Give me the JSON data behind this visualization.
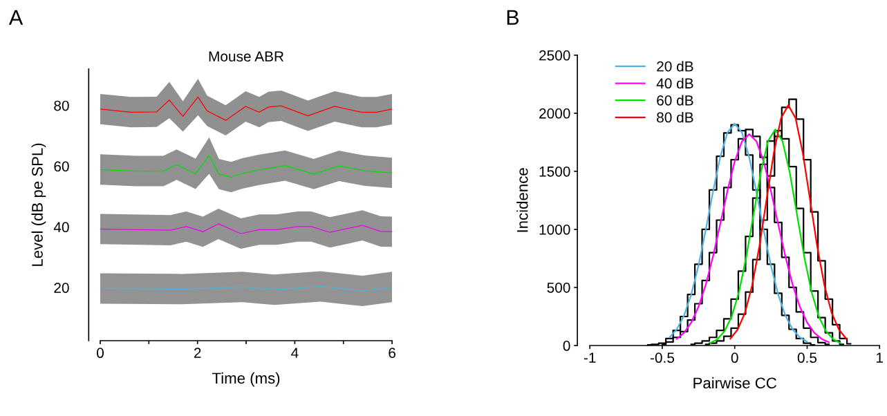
{
  "chart_data": [
    {
      "type": "line",
      "title": "Mouse ABR",
      "xlabel": "Time (ms)",
      "ylabel": "Level (dB pe SPL)",
      "annotations": [
        "A"
      ],
      "xlim": [
        0,
        6
      ],
      "xticks": [
        0,
        {
          "value": 1,
          "label": null
        },
        2,
        {
          "value": 3,
          "label": null
        },
        4,
        {
          "value": 5,
          "label": null
        },
        6
      ],
      "ylim": [
        2.5,
        92
      ],
      "yticks": [
        20,
        40,
        60,
        80
      ],
      "grid": false,
      "legend": false,
      "series": [
        {
          "color": "#ff0000",
          "x": [
            0,
            0.63,
            1.16,
            1.42,
            1.7,
            2.01,
            2.2,
            2.58,
            2.99,
            3.27,
            3.46,
            3.72,
            4.27,
            4.82,
            5.37,
            5.68,
            6.0
          ],
          "values": [
            78.8,
            77.8,
            77.9,
            81.8,
            76.4,
            82.8,
            78.2,
            75.1,
            79.7,
            77.8,
            79.5,
            79.9,
            76.6,
            79.7,
            77.8,
            77.8,
            78.8
          ],
          "lower": [
            73.8,
            72.8,
            72.9,
            75.8,
            71.4,
            76.8,
            73.2,
            70.1,
            74.7,
            72.8,
            74.5,
            74.9,
            71.6,
            74.7,
            72.8,
            72.8,
            73.8
          ],
          "upper": [
            83.8,
            82.8,
            82.9,
            87.8,
            81.4,
            88.8,
            83.2,
            80.1,
            84.7,
            82.8,
            84.5,
            84.9,
            81.6,
            84.7,
            82.8,
            82.8,
            83.8
          ]
        },
        {
          "color": "#00dd00",
          "x": [
            0,
            0.73,
            1.3,
            1.57,
            1.96,
            2.24,
            2.44,
            2.69,
            2.92,
            3.27,
            3.8,
            4.39,
            4.91,
            5.44,
            6.0
          ],
          "values": [
            58.9,
            58.4,
            58.4,
            60.5,
            57.5,
            63.5,
            57.4,
            56.4,
            57.6,
            58.8,
            60.2,
            57.4,
            60.1,
            58.5,
            57.8
          ],
          "lower": [
            53.9,
            53.4,
            53.4,
            55.5,
            52.5,
            57.5,
            52.4,
            51.4,
            52.6,
            53.8,
            55.2,
            52.4,
            55.1,
            53.5,
            52.8
          ],
          "upper": [
            63.9,
            63.4,
            63.4,
            65.5,
            62.5,
            69.5,
            62.4,
            61.4,
            62.6,
            63.8,
            65.2,
            62.4,
            65.1,
            63.5,
            62.8
          ]
        },
        {
          "color": "#ee00ee",
          "x": [
            0,
            1.44,
            1.77,
            2.11,
            2.43,
            2.89,
            3.27,
            3.63,
            4.06,
            4.34,
            4.72,
            5.39,
            5.77,
            6.0
          ],
          "values": [
            39.3,
            38.9,
            40.1,
            38.4,
            41.0,
            37.8,
            39.1,
            39.1,
            40.1,
            40.1,
            38.2,
            40.5,
            38.5,
            38.4
          ],
          "lower": [
            34.3,
            33.9,
            35.1,
            33.4,
            36.0,
            32.8,
            34.1,
            34.1,
            35.1,
            35.1,
            33.2,
            35.5,
            33.5,
            33.4
          ],
          "upper": [
            44.3,
            43.9,
            45.1,
            43.4,
            46.0,
            42.8,
            44.1,
            44.1,
            45.1,
            45.1,
            43.2,
            45.5,
            43.5,
            43.4
          ]
        },
        {
          "color": "#4fb3e0",
          "x": [
            0,
            1.68,
            2.92,
            3.58,
            4.53,
            5.39,
            6.0
          ],
          "values": [
            19.7,
            19.5,
            20.2,
            19.3,
            20.4,
            18.9,
            20.2
          ],
          "lower": [
            14.7,
            14.5,
            15.2,
            14.3,
            15.4,
            13.9,
            15.2
          ],
          "upper": [
            24.7,
            24.5,
            25.2,
            24.3,
            25.4,
            23.9,
            25.2
          ]
        }
      ]
    },
    {
      "type": "line",
      "xlabel": "Pairwise CC",
      "ylabel": "Incidence",
      "annotations": [
        "B"
      ],
      "xlim": [
        -1,
        1
      ],
      "xticks": [
        -1,
        -0.5,
        0,
        0.5,
        1
      ],
      "ylim": [
        0,
        2500
      ],
      "yticks": [
        0,
        500,
        1000,
        1500,
        2000,
        2500
      ],
      "grid": false,
      "legend": "top left",
      "series": [
        {
          "type": "step",
          "color": "#000000",
          "x": [
            -0.6,
            -0.55,
            -0.5,
            -0.45,
            -0.4,
            -0.35,
            -0.3,
            -0.25,
            -0.2,
            -0.15,
            -0.1,
            -0.05,
            0,
            0.05,
            0.1,
            0.15,
            0.2,
            0.25,
            0.3,
            0.35,
            0.4,
            0.45,
            0.5,
            0.55
          ],
          "values": [
            5,
            10,
            20,
            60,
            130,
            250,
            440,
            700,
            1000,
            1340,
            1630,
            1830,
            1900,
            1850,
            1640,
            1340,
            1000,
            700,
            450,
            260,
            140,
            60,
            20,
            5
          ]
        },
        {
          "type": "step",
          "color": "#000000",
          "x": [
            -0.5,
            -0.45,
            -0.4,
            -0.35,
            -0.3,
            -0.25,
            -0.2,
            -0.15,
            -0.1,
            -0.05,
            0,
            0.05,
            0.1,
            0.15,
            0.2,
            0.25,
            0.3,
            0.35,
            0.4,
            0.45,
            0.5,
            0.55,
            0.6,
            0.65
          ],
          "values": [
            10,
            30,
            70,
            120,
            220,
            360,
            560,
            800,
            1080,
            1360,
            1600,
            1780,
            1860,
            1800,
            1620,
            1360,
            1060,
            760,
            500,
            290,
            150,
            70,
            25,
            10
          ]
        },
        {
          "type": "step",
          "color": "#000000",
          "x": [
            -0.3,
            -0.25,
            -0.2,
            -0.15,
            -0.1,
            -0.05,
            0,
            0.05,
            0.1,
            0.15,
            0.2,
            0.25,
            0.3,
            0.35,
            0.4,
            0.45,
            0.5,
            0.55,
            0.6,
            0.65,
            0.7,
            0.75
          ],
          "values": [
            10,
            20,
            40,
            70,
            130,
            230,
            400,
            640,
            940,
            1270,
            1560,
            1760,
            1850,
            1780,
            1540,
            1180,
            800,
            470,
            240,
            110,
            40,
            10
          ]
        },
        {
          "type": "step",
          "color": "#000000",
          "x": [
            -0.2,
            -0.15,
            -0.1,
            -0.05,
            0,
            0.05,
            0.1,
            0.15,
            0.2,
            0.25,
            0.3,
            0.35,
            0.4,
            0.45,
            0.5,
            0.55,
            0.6,
            0.65,
            0.7,
            0.75,
            0.8
          ],
          "values": [
            10,
            20,
            40,
            80,
            150,
            270,
            460,
            740,
            1080,
            1460,
            1800,
            2050,
            2120,
            1950,
            1600,
            1150,
            730,
            400,
            180,
            60,
            15
          ]
        },
        {
          "type": "line",
          "name": "20 dB",
          "color": "#4fb3e0",
          "x": [
            -0.45,
            -0.4,
            -0.35,
            -0.3,
            -0.25,
            -0.2,
            -0.15,
            -0.1,
            -0.05,
            0,
            0.05,
            0.1,
            0.15,
            0.2,
            0.25,
            0.3,
            0.35,
            0.4,
            0.45,
            0.5
          ],
          "values": [
            70,
            140,
            258,
            440,
            688,
            994,
            1323,
            1622,
            1834,
            1910,
            1834,
            1622,
            1323,
            994,
            688,
            440,
            258,
            140,
            70,
            32
          ]
        },
        {
          "type": "line",
          "name": "40 dB",
          "color": "#ff00ff",
          "x": [
            -0.4,
            -0.35,
            -0.3,
            -0.25,
            -0.2,
            -0.15,
            -0.1,
            -0.05,
            0,
            0.05,
            0.1,
            0.15,
            0.2,
            0.25,
            0.3,
            0.35,
            0.4,
            0.45,
            0.5,
            0.55,
            0.6,
            0.65
          ],
          "values": [
            57,
            110,
            198,
            333,
            523,
            766,
            1046,
            1332,
            1585,
            1758,
            1820,
            1758,
            1585,
            1332,
            1046,
            766,
            523,
            333,
            198,
            110,
            57,
            28
          ]
        },
        {
          "type": "line",
          "name": "60 dB",
          "color": "#00e000",
          "x": [
            -0.17,
            -0.12,
            -0.07,
            -0.02,
            0.03,
            0.08,
            0.13,
            0.18,
            0.23,
            0.28,
            0.33,
            0.38,
            0.43,
            0.48,
            0.53,
            0.58,
            0.63,
            0.68,
            0.73
          ],
          "values": [
            21,
            53,
            123,
            252,
            464,
            765,
            1128,
            1490,
            1760,
            1860,
            1760,
            1490,
            1128,
            765,
            464,
            252,
            123,
            53,
            21
          ]
        },
        {
          "type": "line",
          "name": "80 dB",
          "color": "#ff0000",
          "x": [
            -0.03,
            0.02,
            0.07,
            0.12,
            0.17,
            0.22,
            0.27,
            0.32,
            0.37,
            0.42,
            0.47,
            0.52,
            0.57,
            0.62,
            0.67,
            0.72,
            0.77
          ],
          "values": [
            59,
            137,
            279,
            515,
            851,
            1256,
            1658,
            1958,
            2070,
            1958,
            1658,
            1256,
            851,
            515,
            279,
            137,
            59
          ]
        }
      ]
    }
  ]
}
